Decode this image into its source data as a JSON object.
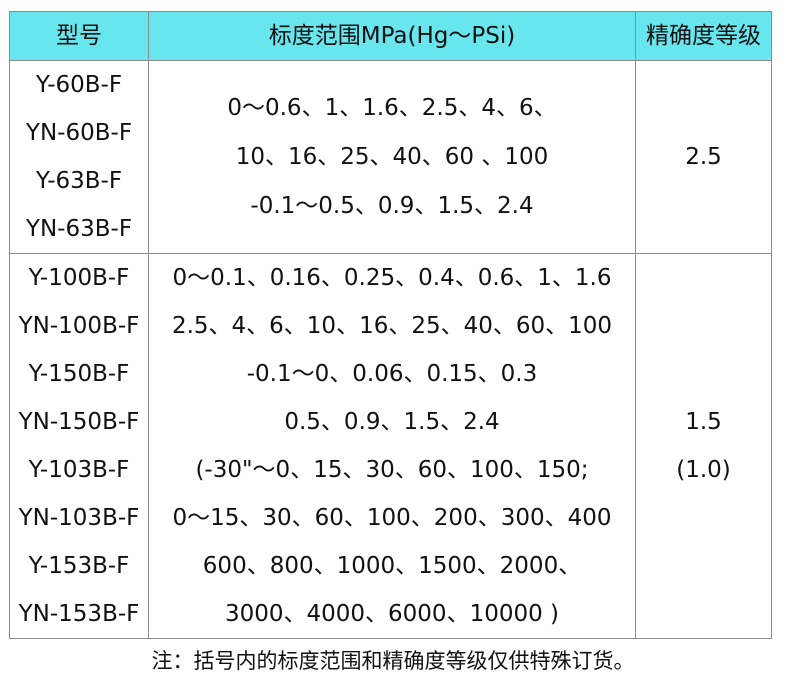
{
  "table": {
    "headers": [
      "型号",
      "标度范围MPa(Hg～PSi)",
      "精确度等级"
    ],
    "rows": [
      {
        "models": [
          "Y-60B-F",
          "YN-60B-F",
          "Y-63B-F",
          "YN-63B-F"
        ],
        "ranges": [
          "0～0.6、1、1.6、2.5、4、6、",
          "10、16、25、40、60 、100",
          "-0.1～0.5、0.9、1.5、2.4"
        ],
        "accuracy": [
          "2.5"
        ]
      },
      {
        "models": [
          "Y-100B-F",
          "YN-100B-F",
          "Y-150B-F",
          "YN-150B-F",
          "Y-103B-F",
          "YN-103B-F",
          "Y-153B-F",
          "YN-153B-F"
        ],
        "ranges": [
          "0～0.1、0.16、0.25、0.4、0.6、1、1.6",
          "2.5、4、6、10、16、25、40、60、100",
          "-0.1～0、0.06、0.15、0.3",
          "0.5、0.9、1.5、2.4",
          "(-30\"～0、15、30、60、100、150;",
          "0～15、30、60、100、200、300、400",
          "600、800、1000、1500、2000、",
          "3000、4000、6000、10000 )"
        ],
        "accuracy": [
          "1.5",
          "(1.0)"
        ]
      }
    ]
  },
  "note": "注：括号内的标度范围和精确度等级仅供特殊订货。"
}
